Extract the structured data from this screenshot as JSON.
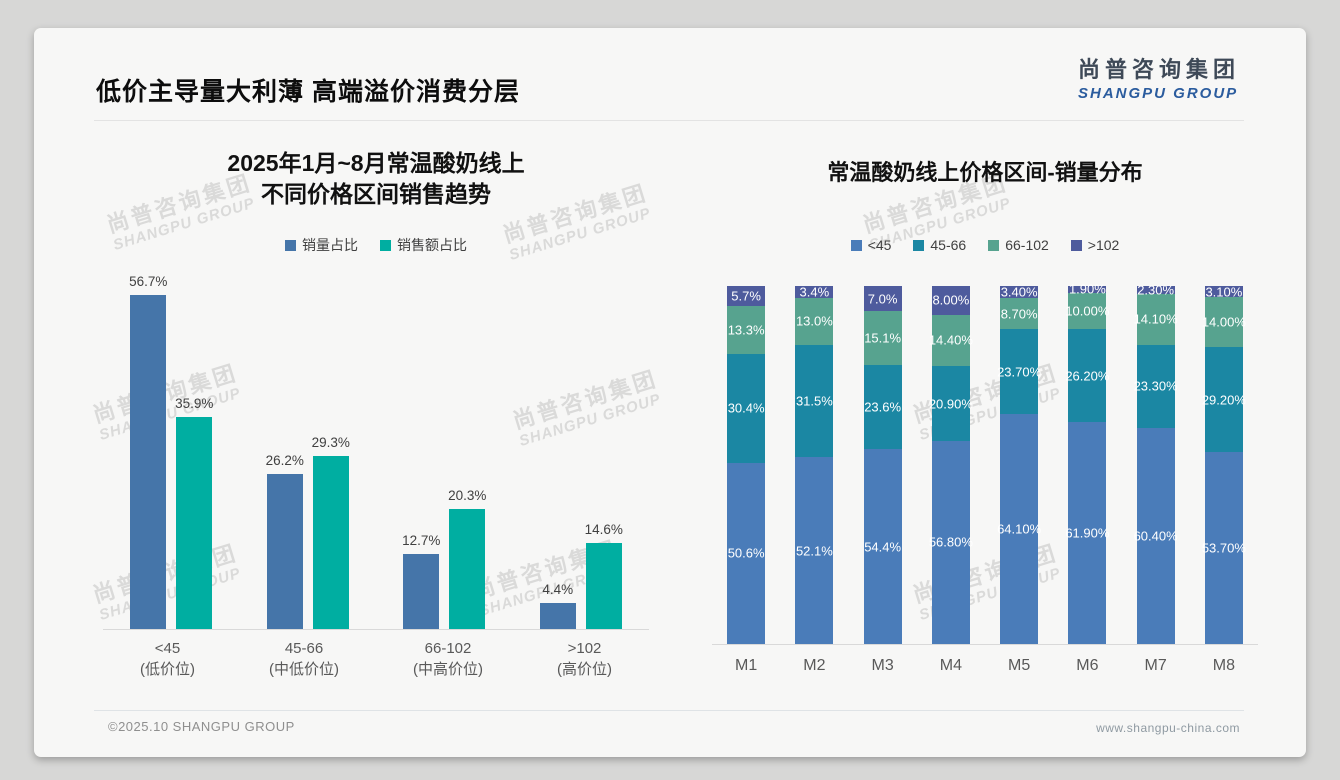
{
  "slide": {
    "header": {
      "title": "低价主导量大利薄 高端溢价消费分层"
    },
    "logo": {
      "zh": "尚普咨询集团",
      "en": "SHANGPU GROUP"
    },
    "watermark": {
      "line1": "尚普咨询集团",
      "line2": "SHANGPU GROUP"
    },
    "footer": {
      "left": "©2025.10 SHANGPU GROUP",
      "right": "www.shangpu-china.com"
    }
  },
  "colors": {
    "left_blue": "#4575A9",
    "left_teal": "#00AEA1",
    "right_blue": "#4A7CB9",
    "right_teal": "#1B87A3",
    "right_green": "#57A38F",
    "right_navy": "#4E5B9D",
    "axis_line": "#d9d9d9",
    "logo_blue": "#2b5c9e"
  },
  "chart_data": [
    {
      "type": "bar",
      "stacked": false,
      "title": "2025年1月~8月常温酸奶线上不同价格区间销售趋势",
      "title_lines": [
        "2025年1月~8月常温酸奶线上",
        "不同价格区间销售趋势"
      ],
      "categories": [
        "<45",
        "45-66",
        "66-102",
        ">102"
      ],
      "category_sublabels": [
        "(低价位)",
        "(中低价位)",
        "(中高价位)",
        "(高价位)"
      ],
      "series": [
        {
          "name": "销量占比",
          "color": "#4575A9",
          "values": [
            56.7,
            26.2,
            12.7,
            4.4
          ],
          "labels": [
            "56.7%",
            "26.2%",
            "12.7%",
            "4.4%"
          ]
        },
        {
          "name": "销售额占比",
          "color": "#00AEA1",
          "values": [
            35.9,
            29.3,
            20.3,
            14.6
          ],
          "labels": [
            "35.9%",
            "29.3%",
            "20.3%",
            "14.6%"
          ]
        }
      ],
      "xlabel": "",
      "ylabel": "",
      "ylim": [
        0,
        60
      ],
      "grid": false,
      "legend_position": "top"
    },
    {
      "type": "bar",
      "stacked": true,
      "title": "常温酸奶线上价格区间-销量分布",
      "categories": [
        "M1",
        "M2",
        "M3",
        "M4",
        "M5",
        "M6",
        "M7",
        "M8"
      ],
      "series": [
        {
          "name": "<45",
          "color": "#4A7CB9",
          "values": [
            50.6,
            52.1,
            54.4,
            56.8,
            64.1,
            61.9,
            60.4,
            53.7
          ],
          "labels": [
            "50.6%",
            "52.1%",
            "54.4%",
            "56.80%",
            "64.10%",
            "61.90%",
            "60.40%",
            "53.70%"
          ]
        },
        {
          "name": "45-66",
          "color": "#1B87A3",
          "values": [
            30.4,
            31.5,
            23.6,
            20.9,
            23.7,
            26.2,
            23.3,
            29.2
          ],
          "labels": [
            "30.4%",
            "31.5%",
            "23.6%",
            "20.90%",
            "23.70%",
            "26.20%",
            "23.30%",
            "29.20%"
          ]
        },
        {
          "name": "66-102",
          "color": "#57A38F",
          "values": [
            13.3,
            13.0,
            15.1,
            14.4,
            8.7,
            10.0,
            14.1,
            14.0
          ],
          "labels": [
            "13.3%",
            "13.0%",
            "15.1%",
            "14.40%",
            "8.70%",
            "10.00%",
            "14.10%",
            "14.00%"
          ]
        },
        {
          "name": ">102",
          "color": "#4E5B9D",
          "values": [
            5.7,
            3.4,
            7.0,
            8.0,
            3.4,
            1.9,
            2.3,
            3.1
          ],
          "labels": [
            "5.7%",
            "3.4%",
            "7.0%",
            "8.00%",
            "3.40%",
            "1.90%",
            "2.30%",
            "3.10%"
          ]
        }
      ],
      "xlabel": "",
      "ylabel": "",
      "ylim": [
        0,
        100
      ],
      "grid": false,
      "legend_position": "top"
    }
  ]
}
